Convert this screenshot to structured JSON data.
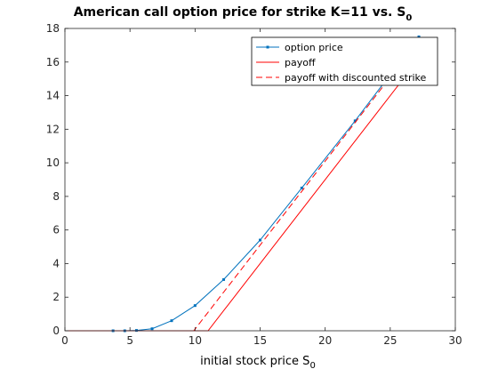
{
  "chart_data": {
    "type": "line",
    "title": "American call option price for strike K=11 vs. S",
    "title_subscript": "0",
    "xlabel": "initial stock price S",
    "xlabel_subscript": "0",
    "ylabel": "",
    "xlim": [
      0,
      30
    ],
    "ylim": [
      0,
      18
    ],
    "xticks": [
      0,
      5,
      10,
      15,
      20,
      25,
      30
    ],
    "yticks": [
      0,
      2,
      4,
      6,
      8,
      10,
      12,
      14,
      16,
      18
    ],
    "grid": false,
    "legend_position": "top-right",
    "series": [
      {
        "name": "option price",
        "style": "solid-markers",
        "color": "#0072BD",
        "x": [
          3.7,
          4.6,
          5.5,
          6.7,
          8.2,
          10.0,
          12.2,
          15.0,
          18.2,
          22.3,
          27.2
        ],
        "y": [
          0.0,
          0.0,
          0.02,
          0.12,
          0.6,
          1.5,
          3.05,
          5.4,
          8.5,
          12.5,
          17.5
        ]
      },
      {
        "name": "payoff",
        "style": "solid",
        "color": "#FF0000",
        "x": [
          0,
          11.0,
          27.2
        ],
        "y": [
          0,
          0,
          16.2
        ]
      },
      {
        "name": "payoff with discounted strike",
        "style": "dashed",
        "color": "#FF0000",
        "x": [
          0,
          9.9,
          27.2
        ],
        "y": [
          0,
          0,
          17.3
        ]
      }
    ]
  }
}
